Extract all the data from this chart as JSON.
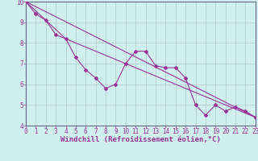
{
  "background_color": "#cff0ee",
  "grid_color": "#b0c8c8",
  "line_color": "#993399",
  "axis_color": "#993399",
  "spine_color": "#666688",
  "xlim": [
    0,
    23
  ],
  "ylim": [
    4,
    10
  ],
  "yticks": [
    4,
    5,
    6,
    7,
    8,
    9,
    10
  ],
  "xticks": [
    0,
    1,
    2,
    3,
    4,
    5,
    6,
    7,
    8,
    9,
    10,
    11,
    12,
    13,
    14,
    15,
    16,
    17,
    18,
    19,
    20,
    21,
    22,
    23
  ],
  "xlabel": "Windchill (Refroidissement éolien,°C)",
  "line1_x": [
    0,
    1,
    2,
    3,
    4,
    5,
    6,
    7,
    8,
    9,
    10,
    11,
    12,
    13,
    14,
    15,
    16,
    17,
    18,
    19,
    20,
    21,
    22,
    23
  ],
  "line1_y": [
    10.0,
    9.4,
    9.1,
    8.4,
    8.2,
    7.3,
    6.7,
    6.3,
    5.8,
    6.0,
    7.0,
    7.6,
    7.6,
    6.9,
    6.8,
    6.8,
    6.3,
    5.0,
    4.5,
    5.0,
    4.7,
    4.9,
    4.7,
    4.4
  ],
  "line2_x": [
    0,
    23
  ],
  "line2_y": [
    10.0,
    4.4
  ],
  "line3_x": [
    0,
    4,
    10,
    23
  ],
  "line3_y": [
    10.0,
    8.2,
    7.0,
    4.4
  ],
  "marker": "D",
  "markersize": 2.0,
  "linewidth": 0.8,
  "tick_fontsize": 5.5,
  "xlabel_fontsize": 6.5
}
